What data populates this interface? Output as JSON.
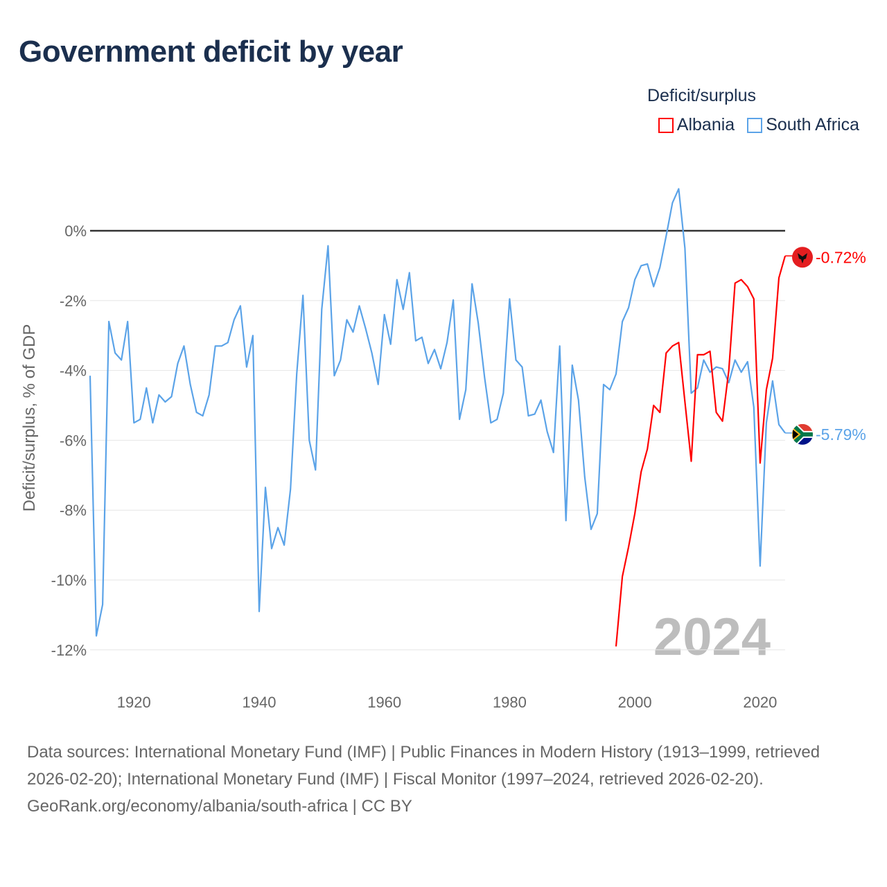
{
  "title": "Government deficit by year",
  "legend": {
    "title": "Deficit/surplus",
    "items": [
      {
        "label": "Albania",
        "color": "#ff0000"
      },
      {
        "label": "South Africa",
        "color": "#5ba3e8"
      }
    ]
  },
  "chart_data": {
    "type": "line",
    "title": "Government deficit by year",
    "xlabel": "",
    "ylabel": "Deficit/surplus, % of GDP",
    "xlim": [
      1913,
      2024
    ],
    "ylim": [
      -13,
      1.8
    ],
    "xticks": [
      1920,
      1940,
      1960,
      1980,
      2000,
      2020
    ],
    "xtick_labels": [
      "1920",
      "1940",
      "1960",
      "1980",
      "2000",
      "2020"
    ],
    "yticks": [
      0,
      -2,
      -4,
      -6,
      -8,
      -10,
      -12
    ],
    "ytick_labels": [
      "0%",
      "-2%",
      "-4%",
      "-6%",
      "-8%",
      "-10%",
      "-12%"
    ],
    "year_watermark": "2024",
    "series": [
      {
        "name": "South Africa",
        "color": "#5ba3e8",
        "end_label": "-5.79%",
        "x_start": 1913,
        "values": [
          -4.15,
          -11.6,
          -10.7,
          -2.6,
          -3.5,
          -3.7,
          -2.6,
          -5.5,
          -5.4,
          -4.5,
          -5.5,
          -4.7,
          -4.9,
          -4.75,
          -3.8,
          -3.3,
          -4.4,
          -5.2,
          -5.3,
          -4.7,
          -3.3,
          -3.3,
          -3.2,
          -2.55,
          -2.15,
          -3.9,
          -3.0,
          -10.9,
          -7.35,
          -9.1,
          -8.5,
          -9.0,
          -7.4,
          -4.1,
          -1.85,
          -6.0,
          -6.85,
          -2.25,
          -0.43,
          -4.15,
          -3.7,
          -2.55,
          -2.9,
          -2.15,
          -2.8,
          -3.5,
          -4.4,
          -2.4,
          -3.25,
          -1.4,
          -2.25,
          -1.2,
          -3.15,
          -3.05,
          -3.8,
          -3.4,
          -3.95,
          -3.2,
          -1.98,
          -5.4,
          -4.55,
          -1.52,
          -2.65,
          -4.2,
          -5.5,
          -5.4,
          -4.65,
          -1.95,
          -3.7,
          -3.9,
          -5.3,
          -5.25,
          -4.85,
          -5.75,
          -6.35,
          -3.3,
          -8.3,
          -3.85,
          -4.85,
          -7.05,
          -8.55,
          -8.1,
          -4.4,
          -4.55,
          -4.1,
          -2.6,
          -2.2,
          -1.4,
          -1.0,
          -0.95,
          -1.6,
          -1.05,
          -0.15,
          0.8,
          1.2,
          -0.5,
          -4.65,
          -4.5,
          -3.7,
          -4.05,
          -3.9,
          -3.95,
          -4.35,
          -3.7,
          -4.05,
          -3.75,
          -5.05,
          -9.6,
          -5.5,
          -4.3,
          -5.55,
          -5.79
        ]
      },
      {
        "name": "Albania",
        "color": "#ff0000",
        "end_label": "-0.72%",
        "x_start": 1997,
        "values": [
          -11.9,
          -9.9,
          -9.05,
          -8.1,
          -6.9,
          -6.25,
          -5.0,
          -5.2,
          -3.5,
          -3.3,
          -3.2,
          -4.9,
          -6.6,
          -3.55,
          -3.55,
          -3.45,
          -5.2,
          -5.45,
          -4.0,
          -1.5,
          -1.4,
          -1.6,
          -1.95,
          -6.65,
          -4.55,
          -3.65,
          -1.35,
          -0.72
        ]
      }
    ]
  },
  "footer": {
    "sources": "Data sources: International Monetary Fund (IMF) | Public Finances in Modern History (1913–1999, retrieved 2026-02-20); International Monetary Fund (IMF) | Fiscal Monitor (1997–2024, retrieved 2026-02-20).",
    "link": "GeoRank.org/economy/albania/south-africa | CC BY"
  }
}
